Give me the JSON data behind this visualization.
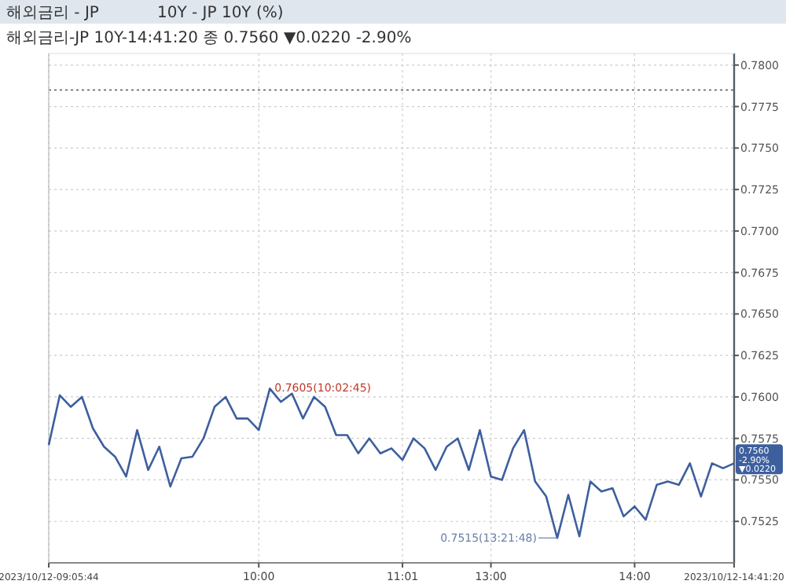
{
  "chart_data": {
    "type": "line",
    "title": "해외금리 - JP",
    "subtitle": "10Y - JP 10Y (%)",
    "annotations": [
      "해외금리-JP 10Y-14:41:20 종 0.7560 ▼0.0220 -2.90%",
      "0.7605(10:02:45)",
      "0.7515(13:21:48)",
      "0.7560 -2.90% ▼0.0220"
    ],
    "categories": [
      "2023/10/12-09:05:44",
      null,
      null,
      null,
      null,
      null,
      null,
      null,
      null,
      null,
      null,
      null,
      null,
      null,
      null,
      null,
      null,
      null,
      null,
      "10:00",
      null,
      null,
      null,
      null,
      null,
      null,
      null,
      null,
      null,
      null,
      null,
      null,
      "11:01",
      null,
      null,
      null,
      null,
      null,
      null,
      null,
      "13:00",
      null,
      null,
      null,
      null,
      null,
      null,
      null,
      null,
      null,
      null,
      null,
      null,
      "14:00",
      null,
      null,
      null,
      null,
      null,
      null,
      null,
      null,
      "2023/10/12-14:41:20"
    ],
    "series": [
      {
        "color": "#3d5f9e",
        "values": [
          0.7571,
          0.7601,
          0.7594,
          0.76,
          0.7581,
          0.757,
          0.7564,
          0.7552,
          0.758,
          0.7556,
          0.757,
          0.7546,
          0.7563,
          0.7564,
          0.7575,
          0.7594,
          0.76,
          0.7587,
          0.7587,
          0.758,
          0.7605,
          0.7597,
          0.7602,
          0.7587,
          0.76,
          0.7594,
          0.7577,
          0.7577,
          0.7566,
          0.7575,
          0.7566,
          0.7569,
          0.7562,
          0.7575,
          0.7569,
          0.7556,
          0.757,
          0.7575,
          0.7556,
          0.758,
          0.7552,
          0.755,
          0.7569,
          0.758,
          0.7549,
          0.754,
          0.7515,
          0.7541,
          0.7516,
          0.7549,
          0.7543,
          0.7545,
          0.7528,
          0.7534,
          0.7526,
          0.7547,
          0.7549,
          0.7547,
          0.756,
          0.754,
          0.756,
          0.7557,
          0.756
        ]
      }
    ],
    "ylim": [
      0.75,
      0.7807
    ],
    "yticks": [
      {
        "value": 0.7525,
        "label": "0.7525"
      },
      {
        "value": 0.755,
        "label": "0.7550"
      },
      {
        "value": 0.7575,
        "label": "0.7575"
      },
      {
        "value": 0.76,
        "label": "0.7600"
      },
      {
        "value": 0.7625,
        "label": "0.7625"
      },
      {
        "value": 0.765,
        "label": "0.7650"
      },
      {
        "value": 0.7675,
        "label": "0.7675"
      },
      {
        "value": 0.77,
        "label": "0.7700"
      },
      {
        "value": 0.7725,
        "label": "0.7725"
      },
      {
        "value": 0.775,
        "label": "0.7750"
      },
      {
        "value": 0.7775,
        "label": "0.7775"
      },
      {
        "value": 0.78,
        "label": "0.7800"
      }
    ],
    "ref_lines": [
      {
        "axis": "y",
        "value": 0.7785,
        "color": "#555555",
        "line_style": "dotted"
      }
    ],
    "grid": true,
    "marker": "none",
    "line_style": "solid"
  }
}
